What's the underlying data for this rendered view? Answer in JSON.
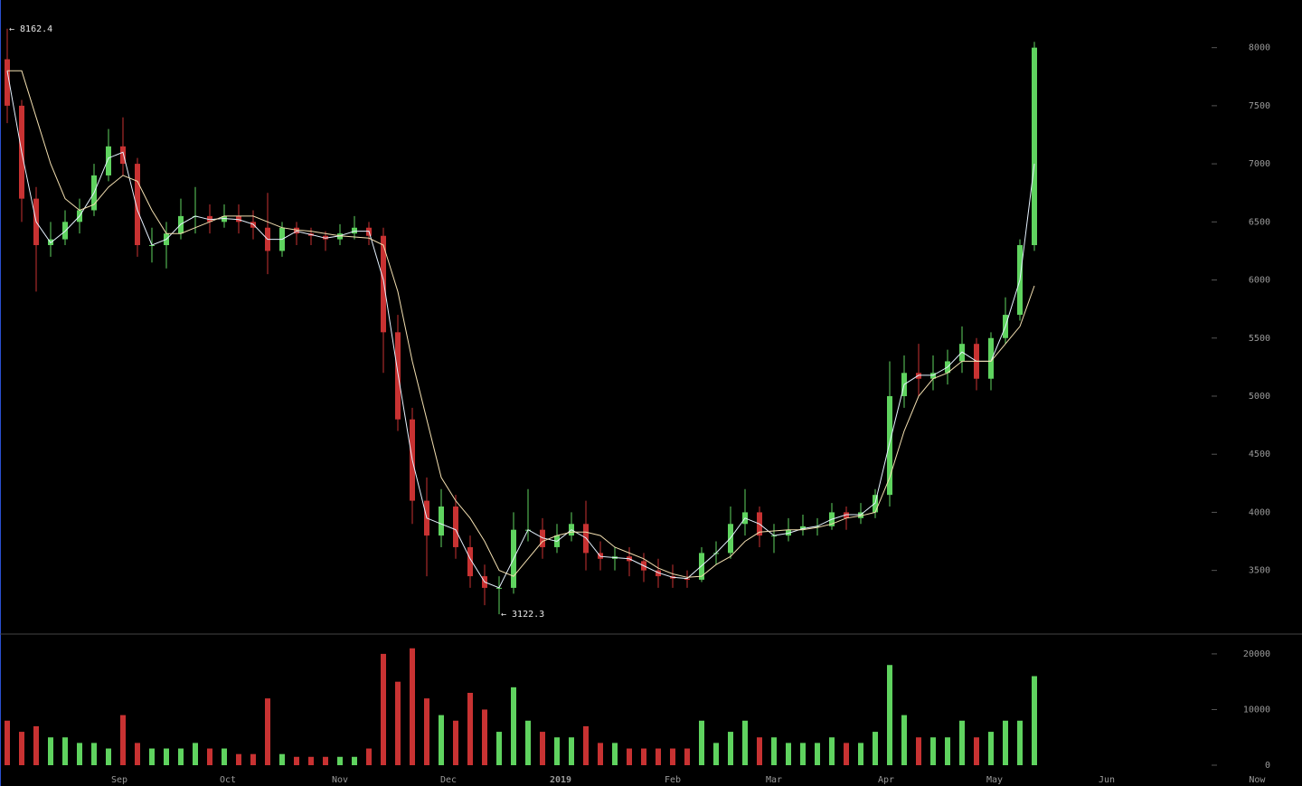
{
  "chart_data": [
    {
      "type": "candlestick",
      "xlim": [
        0,
        90
      ],
      "xticks": [
        {
          "value": 8.25,
          "label": "Sep"
        },
        {
          "value": 15.75,
          "label": "Oct"
        },
        {
          "value": 23.5,
          "label": "Nov"
        },
        {
          "value": 31,
          "label": "Dec"
        },
        {
          "value": 38.75,
          "label": "2019",
          "bold": true
        },
        {
          "value": 46.5,
          "label": "Feb"
        },
        {
          "value": 53.5,
          "label": "Mar"
        },
        {
          "value": 61.25,
          "label": "Apr"
        },
        {
          "value": 68.75,
          "label": "May"
        },
        {
          "value": 76.5,
          "label": "Jun"
        },
        {
          "value": 86.9,
          "label": "Now"
        }
      ],
      "ylim": [
        2960,
        8410
      ],
      "yticks": [
        3500,
        4000,
        4500,
        5000,
        5500,
        6000,
        6500,
        7000,
        7500,
        8000
      ],
      "up_color": "#5fd35f",
      "down_color": "#c83232",
      "open": [
        7900,
        7500,
        6700,
        6300,
        6350,
        6500,
        6600,
        6900,
        7150,
        7000,
        6300,
        6300,
        6400,
        6550,
        6550,
        6500,
        6550,
        6500,
        6450,
        6250,
        6450,
        6400,
        6380,
        6350,
        6400,
        6450,
        6380,
        5550,
        4800,
        4100,
        3800,
        4050,
        3700,
        3450,
        3350,
        3350,
        3850,
        3850,
        3700,
        3800,
        3900,
        3650,
        3600,
        3620,
        3580,
        3500,
        3450,
        3430,
        3420,
        3650,
        3650,
        3900,
        4000,
        3800,
        3800,
        3850,
        3880,
        3880,
        4000,
        3950,
        4000,
        4150,
        5000,
        5200,
        5150,
        5200,
        5300,
        5450,
        5150,
        5500,
        5700,
        6300
      ],
      "high": [
        8162.4,
        7550,
        6800,
        6500,
        6600,
        6700,
        7000,
        7300,
        7400,
        7050,
        6450,
        6500,
        6700,
        6800,
        6650,
        6650,
        6650,
        6600,
        6750,
        6500,
        6500,
        6450,
        6420,
        6480,
        6550,
        6500,
        6450,
        5700,
        4900,
        4300,
        4200,
        4150,
        3800,
        3550,
        3450,
        4000,
        4200,
        3950,
        3900,
        4000,
        4100,
        3750,
        3700,
        3700,
        3650,
        3600,
        3550,
        3500,
        3700,
        3750,
        4050,
        4200,
        4050,
        3900,
        3950,
        3980,
        3950,
        4080,
        4050,
        4080,
        4200,
        5300,
        5350,
        5450,
        5350,
        5400,
        5600,
        5500,
        5550,
        5850,
        6350,
        8050
      ],
      "low": [
        7350,
        6500,
        5900,
        6200,
        6300,
        6400,
        6550,
        6850,
        6900,
        6200,
        6150,
        6100,
        6350,
        6400,
        6400,
        6450,
        6400,
        6350,
        6050,
        6200,
        6300,
        6300,
        6250,
        6300,
        6350,
        6300,
        5200,
        4700,
        3900,
        3450,
        3700,
        3600,
        3350,
        3200,
        3122.3,
        3300,
        3750,
        3600,
        3650,
        3750,
        3500,
        3500,
        3500,
        3450,
        3400,
        3350,
        3350,
        3350,
        3400,
        3550,
        3600,
        3800,
        3700,
        3650,
        3750,
        3800,
        3800,
        3850,
        3850,
        3900,
        3950,
        4050,
        4900,
        5000,
        5050,
        5100,
        5200,
        5050,
        5050,
        5450,
        5650,
        6250
      ],
      "close": [
        7500,
        6700,
        6300,
        6350,
        6500,
        6600,
        6900,
        7150,
        7000,
        6300,
        6300,
        6400,
        6550,
        6550,
        6500,
        6550,
        6500,
        6450,
        6250,
        6450,
        6400,
        6380,
        6350,
        6400,
        6450,
        6380,
        5550,
        4800,
        4100,
        3800,
        4050,
        3700,
        3450,
        3350,
        3350,
        3850,
        3850,
        3700,
        3800,
        3900,
        3650,
        3600,
        3620,
        3580,
        3500,
        3450,
        3430,
        3420,
        3650,
        3650,
        3900,
        4000,
        3800,
        3800,
        3850,
        3880,
        3880,
        4000,
        3950,
        4000,
        4150,
        5000,
        5200,
        5150,
        5200,
        5300,
        5450,
        5150,
        5500,
        5700,
        6300,
        8000
      ],
      "lines": [
        {
          "color": "#e6f2ff",
          "values": [
            7800,
            7100,
            6500,
            6320,
            6420,
            6550,
            6750,
            7050,
            7100,
            6600,
            6300,
            6350,
            6480,
            6550,
            6520,
            6530,
            6520,
            6480,
            6350,
            6350,
            6420,
            6390,
            6360,
            6380,
            6420,
            6420,
            6000,
            5200,
            4450,
            3950,
            3900,
            3850,
            3600,
            3400,
            3350,
            3600,
            3850,
            3780,
            3750,
            3850,
            3780,
            3620,
            3610,
            3600,
            3540,
            3480,
            3440,
            3430,
            3540,
            3650,
            3780,
            3950,
            3900,
            3800,
            3820,
            3860,
            3880,
            3940,
            3980,
            3980,
            4080,
            4600,
            5100,
            5180,
            5180,
            5250,
            5380,
            5300,
            5300,
            5600,
            6000,
            7000
          ]
        },
        {
          "color": "#f3dfb0",
          "values": [
            7800,
            7800,
            7400,
            7000,
            6700,
            6600,
            6650,
            6800,
            6900,
            6850,
            6600,
            6400,
            6400,
            6450,
            6500,
            6550,
            6550,
            6550,
            6500,
            6450,
            6430,
            6420,
            6400,
            6380,
            6370,
            6360,
            6300,
            5900,
            5300,
            4800,
            4300,
            4100,
            3950,
            3750,
            3500,
            3450,
            3600,
            3750,
            3800,
            3830,
            3830,
            3800,
            3700,
            3650,
            3600,
            3520,
            3470,
            3440,
            3450,
            3550,
            3620,
            3750,
            3830,
            3840,
            3850,
            3850,
            3870,
            3900,
            3950,
            3970,
            4000,
            4300,
            4700,
            5000,
            5150,
            5200,
            5300,
            5300,
            5300,
            5450,
            5600,
            5950
          ]
        }
      ],
      "annotations": [
        {
          "text": "← 8162.4",
          "value": 8162.4,
          "x": 0
        },
        {
          "text": "← 3122.3",
          "value": 3122.3,
          "x": 34
        }
      ]
    },
    {
      "type": "bar",
      "xlim": [
        0,
        90
      ],
      "ylim": [
        0,
        23400
      ],
      "yticks": [
        0,
        10000,
        20000
      ],
      "values": [
        8000,
        6000,
        7000,
        5000,
        5000,
        4000,
        4000,
        3000,
        9000,
        4000,
        3000,
        3000,
        3000,
        4000,
        3000,
        3000,
        2000,
        2000,
        12000,
        2000,
        1500,
        1500,
        1500,
        1500,
        1500,
        3000,
        20000,
        15000,
        21000,
        12000,
        9000,
        8000,
        13000,
        10000,
        6000,
        14000,
        8000,
        6000,
        5000,
        5000,
        7000,
        4000,
        4000,
        3000,
        3000,
        3000,
        3000,
        3000,
        8000,
        4000,
        6000,
        8000,
        5000,
        5000,
        4000,
        4000,
        4000,
        5000,
        4000,
        4000,
        6000,
        18000,
        9000,
        5000,
        5000,
        5000,
        8000,
        5000,
        6000,
        8000,
        8000,
        16000
      ]
    }
  ]
}
